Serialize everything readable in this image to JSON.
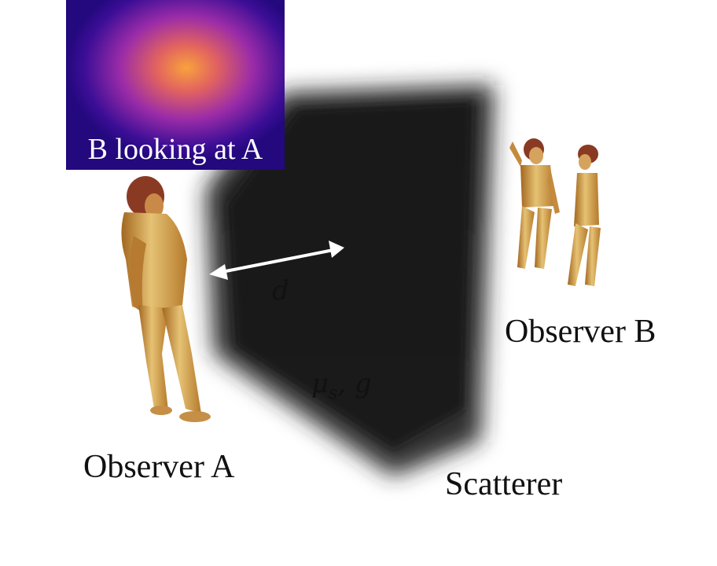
{
  "inset": {
    "caption": "B looking at A"
  },
  "labels": {
    "observer_a": "Observer A",
    "observer_b": "Observer B",
    "scatterer": "Scatterer",
    "distance": "d",
    "medium_params": "μs, g"
  },
  "colors": {
    "figure_gold": "#e0b565",
    "figure_shadow": "#a2661f",
    "hair": "#8a3a22",
    "scatterer": "#1c1c1c",
    "inset_bg": "#2c0a8c",
    "inset_glow": "#f59a3a",
    "arrow": "#ffffff"
  },
  "icons": [
    "person-figure-icon",
    "double-arrow-icon"
  ]
}
